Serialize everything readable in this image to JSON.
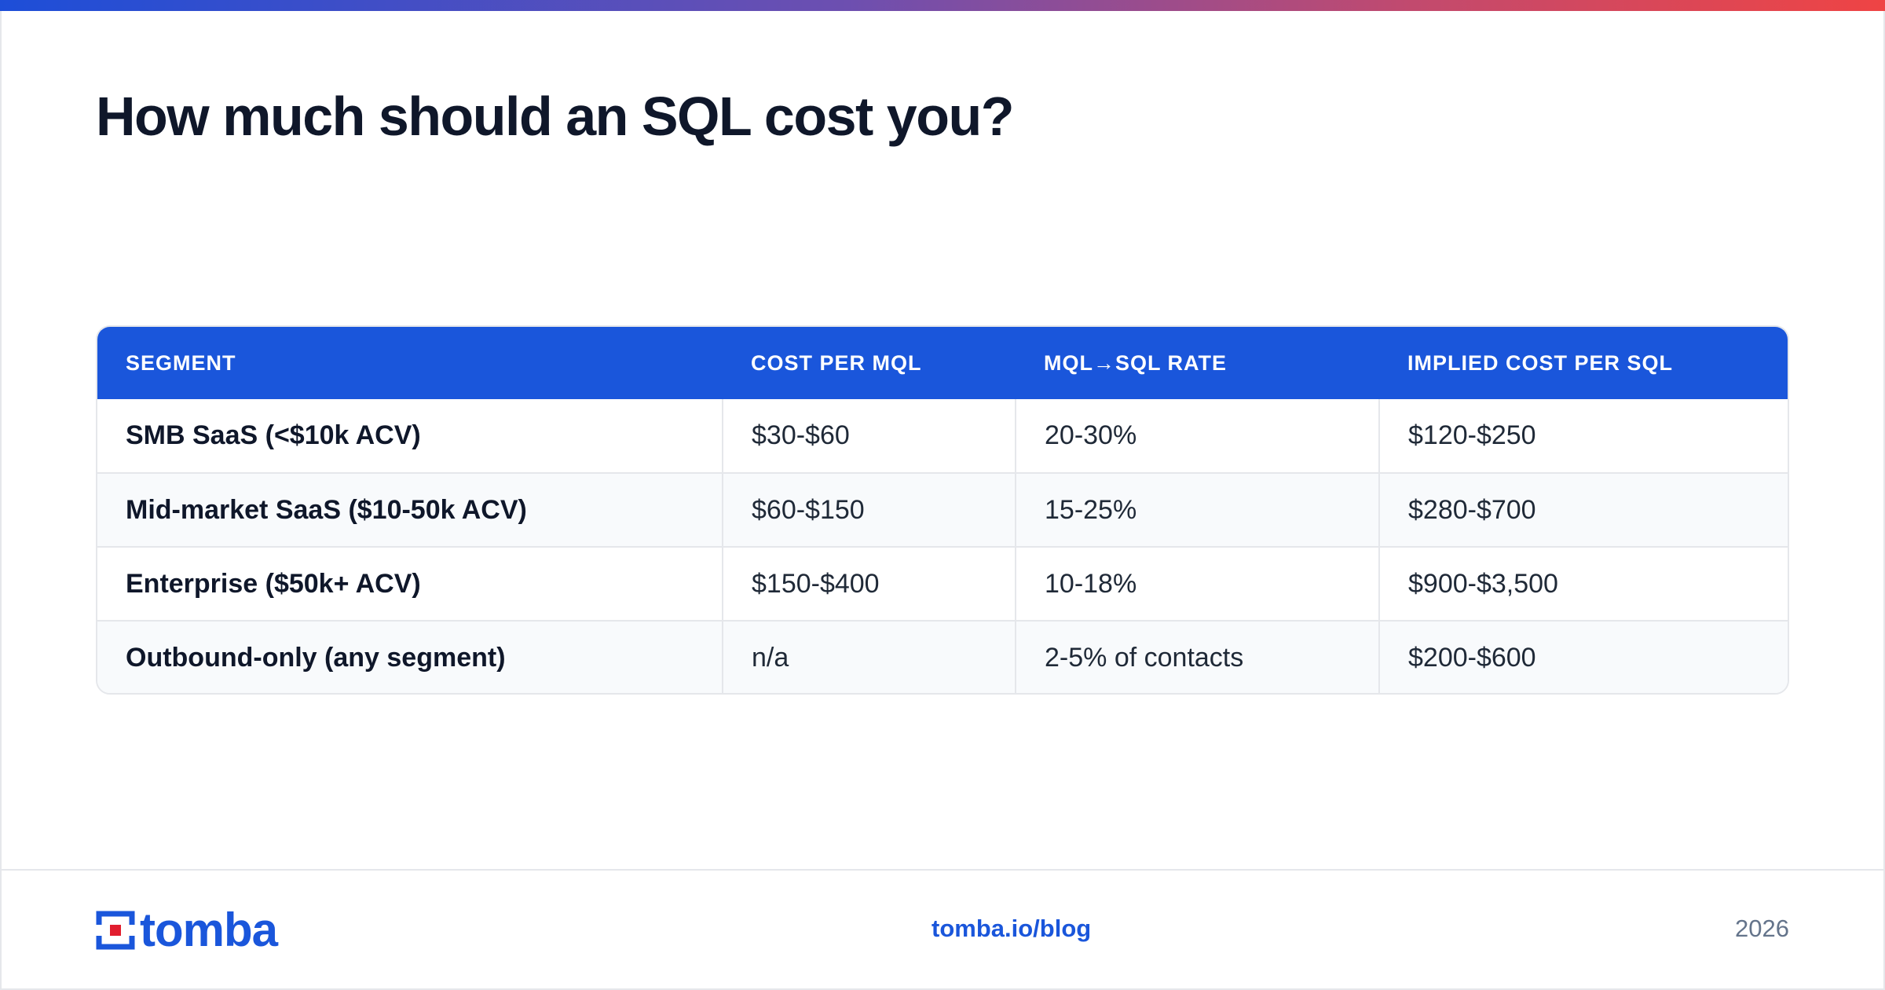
{
  "title": "How much should an SQL cost you?",
  "colors": {
    "accent": "#1a56db",
    "text": "#0f172a",
    "muted": "#64748b",
    "logo_red": "#e11d2e"
  },
  "table": {
    "headers": [
      "SEGMENT",
      "COST PER MQL",
      "MQL→SQL RATE",
      "IMPLIED COST PER SQL"
    ],
    "rows": [
      {
        "segment": "SMB SaaS (<$10k ACV)",
        "cost_per_mql": "$30-$60",
        "rate": "20-30%",
        "implied": "$120-$250"
      },
      {
        "segment": "Mid-market SaaS ($10-50k ACV)",
        "cost_per_mql": "$60-$150",
        "rate": "15-25%",
        "implied": "$280-$700"
      },
      {
        "segment": "Enterprise ($50k+ ACV)",
        "cost_per_mql": "$150-$400",
        "rate": "10-18%",
        "implied": "$900-$3,500"
      },
      {
        "segment": "Outbound-only (any segment)",
        "cost_per_mql": "n/a",
        "rate": "2-5% of contacts",
        "implied": "$200-$600"
      }
    ]
  },
  "footer": {
    "logo_text": "tomba",
    "logo_icon": "tomba-mark-icon",
    "link": "tomba.io/blog",
    "year": "2026"
  }
}
